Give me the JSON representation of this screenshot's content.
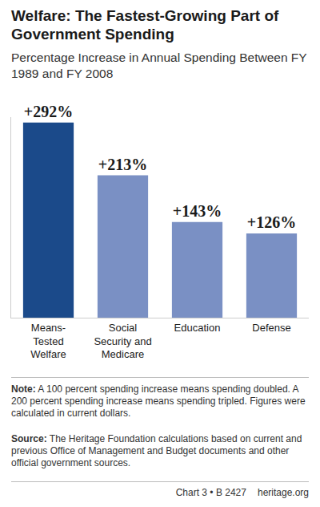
{
  "chart_data": {
    "type": "bar",
    "title": "Welfare: The Fastest-Growing Part of Government Spending",
    "subtitle": "Percentage Increase in Annual Spending Between FY 1989 and FY 2008",
    "categories": [
      "Means-Tested Welfare",
      "Social Security and Medicare",
      "Education",
      "Defense"
    ],
    "values": [
      292,
      213,
      143,
      126
    ],
    "value_labels": [
      "+292%",
      "+213%",
      "+143%",
      "+126%"
    ],
    "colors": [
      "#1b4a8a",
      "#7a90c4",
      "#7a90c4",
      "#7a90c4"
    ],
    "ylim": [
      0,
      300
    ],
    "yticks": [
      0
    ],
    "grid": false,
    "data_labels": true,
    "tick_labels": "x"
  },
  "note": {
    "label": "Note:",
    "text": "A 100 percent spending increase means spending doubled. A 200 percent spending increase means spending tripled. Figures were calculated in current dollars."
  },
  "source": {
    "label": "Source:",
    "text": "The Heritage Foundation calculations based on current and previous Office of Management and Budget documents and other official government sources."
  },
  "footer": {
    "chart": "Chart 3 • B 2427",
    "site": "heritage.org"
  }
}
